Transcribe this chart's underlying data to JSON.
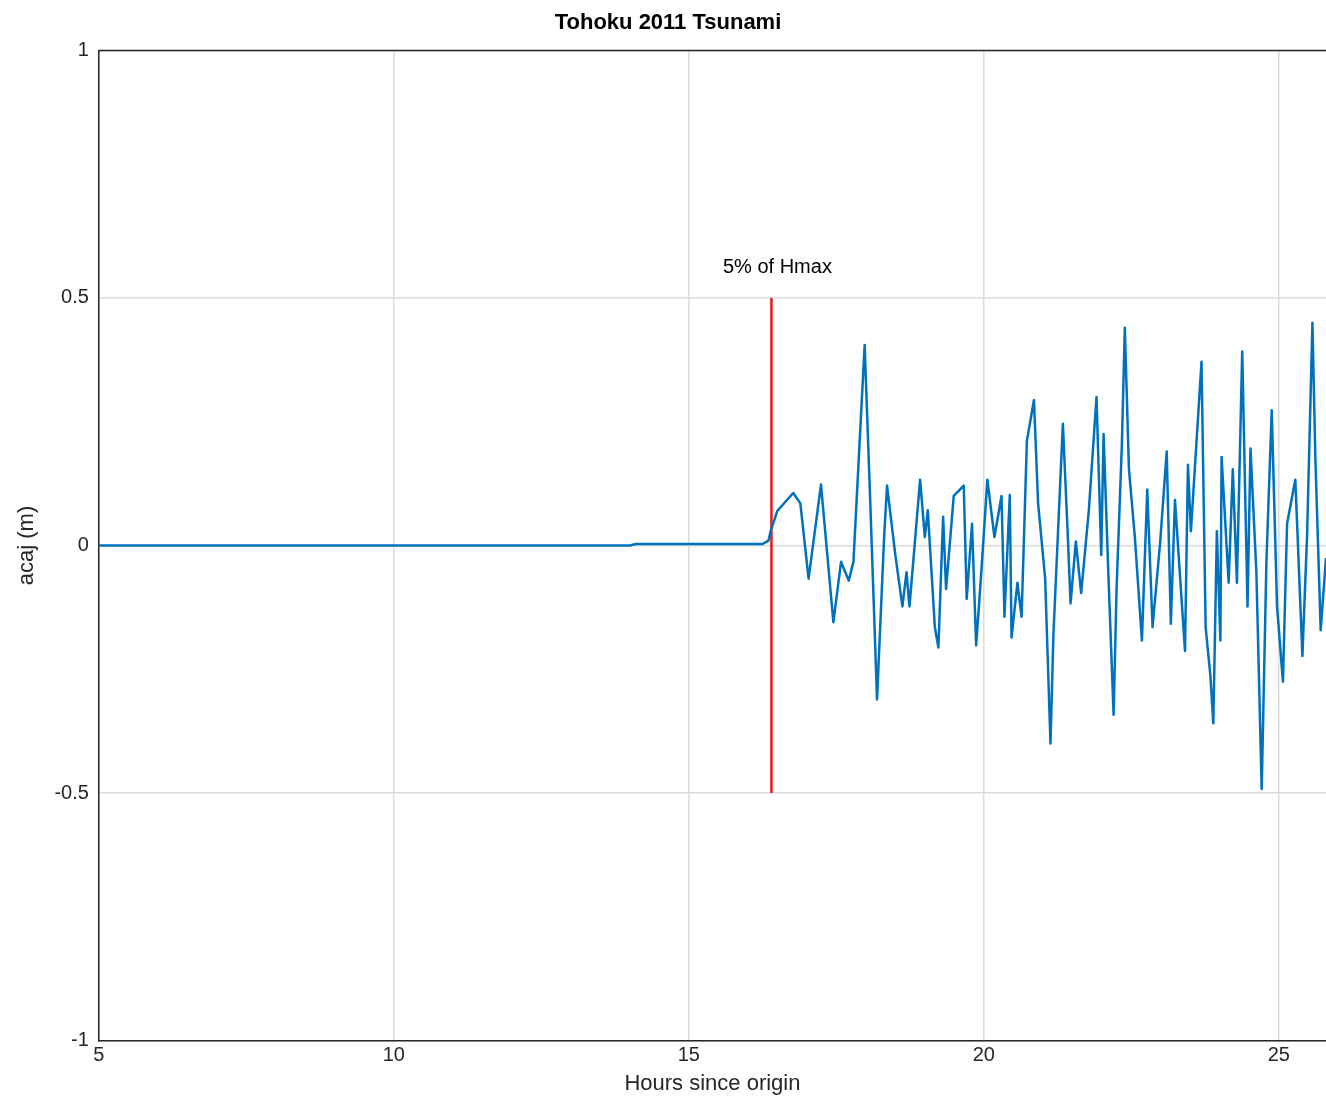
{
  "chart_data": {
    "type": "line",
    "title": "Tohoku 2011 Tsunami",
    "xlabel": "Hours since origin",
    "ylabel": "acaj (m)",
    "xlim": [
      5,
      25.8
    ],
    "xticks": [
      5,
      10,
      15,
      20,
      25
    ],
    "ylim": [
      -1,
      1
    ],
    "yticks": [
      -1,
      -0.5,
      0,
      0.5,
      1
    ],
    "grid": true,
    "annotations": [
      {
        "text": "5% of Hmax",
        "x": 16.4,
        "y": 0.5
      }
    ],
    "series": [
      {
        "color": "#0072bd",
        "x": [
          5,
          14,
          14.1,
          16.25,
          16.35,
          16.39,
          16.5,
          16.77,
          16.89,
          17.03,
          17.24,
          17.45,
          17.58,
          17.71,
          17.79,
          17.98,
          18.07,
          18.19,
          18.31,
          18.36,
          18.5,
          18.62,
          18.69,
          18.74,
          18.92,
          19.0,
          19.05,
          19.17,
          19.23,
          19.31,
          19.36,
          19.49,
          19.66,
          19.71,
          19.8,
          19.87,
          19.95,
          20.06,
          20.18,
          20.3,
          20.35,
          20.44,
          20.47,
          20.57,
          20.64,
          20.73,
          20.85,
          20.92,
          21.04,
          21.13,
          21.18,
          21.34,
          21.42,
          21.47,
          21.56,
          21.65,
          21.78,
          21.91,
          21.99,
          22.03,
          22.11,
          22.2,
          22.25,
          22.34,
          22.39,
          22.46,
          22.56,
          22.68,
          22.77,
          22.86,
          22.99,
          23.1,
          23.17,
          23.24,
          23.41,
          23.46,
          23.51,
          23.69,
          23.76,
          23.84,
          23.89,
          23.95,
          24.01,
          24.03,
          24.15,
          24.22,
          24.29,
          24.38,
          24.47,
          24.52,
          24.62,
          24.71,
          24.79,
          24.88,
          24.97,
          25.07,
          25.14,
          25.28,
          25.4,
          25.48,
          25.57,
          25.62,
          25.71,
          25.8
        ],
        "values": [
          0,
          0,
          0.003,
          0.003,
          0.01,
          0.03,
          0.07,
          0.106,
          0.085,
          -0.067,
          0.123,
          -0.155,
          -0.033,
          -0.071,
          -0.033,
          0.405,
          0.106,
          -0.311,
          0.017,
          0.121,
          -0.019,
          -0.123,
          -0.054,
          -0.123,
          0.133,
          0.017,
          0.071,
          -0.165,
          -0.206,
          0.058,
          -0.088,
          0.1,
          0.121,
          -0.108,
          0.044,
          -0.202,
          -0.067,
          0.133,
          0.017,
          0.1,
          -0.144,
          0.102,
          -0.186,
          -0.075,
          -0.144,
          0.211,
          0.294,
          0.085,
          -0.067,
          -0.4,
          -0.179,
          0.246,
          0.029,
          -0.117,
          0.008,
          -0.096,
          0.071,
          0.3,
          -0.019,
          0.225,
          -0.054,
          -0.342,
          -0.088,
          0.204,
          0.44,
          0.154,
          0.017,
          -0.192,
          0.113,
          -0.165,
          0.008,
          0.19,
          -0.158,
          0.092,
          -0.213,
          0.163,
          0.029,
          0.371,
          -0.165,
          -0.263,
          -0.359,
          0.029,
          -0.192,
          0.179,
          -0.075,
          0.154,
          -0.075,
          0.392,
          -0.123,
          0.196,
          -0.054,
          -0.492,
          -0.033,
          0.273,
          -0.123,
          -0.275,
          0.044,
          0.133,
          -0.223,
          0.023,
          0.45,
          0.175,
          -0.171,
          -0.025
        ]
      },
      {
        "color": "#e41a1c",
        "x": [
          16.4,
          16.4
        ],
        "values": [
          -0.5,
          0.5
        ]
      }
    ]
  }
}
